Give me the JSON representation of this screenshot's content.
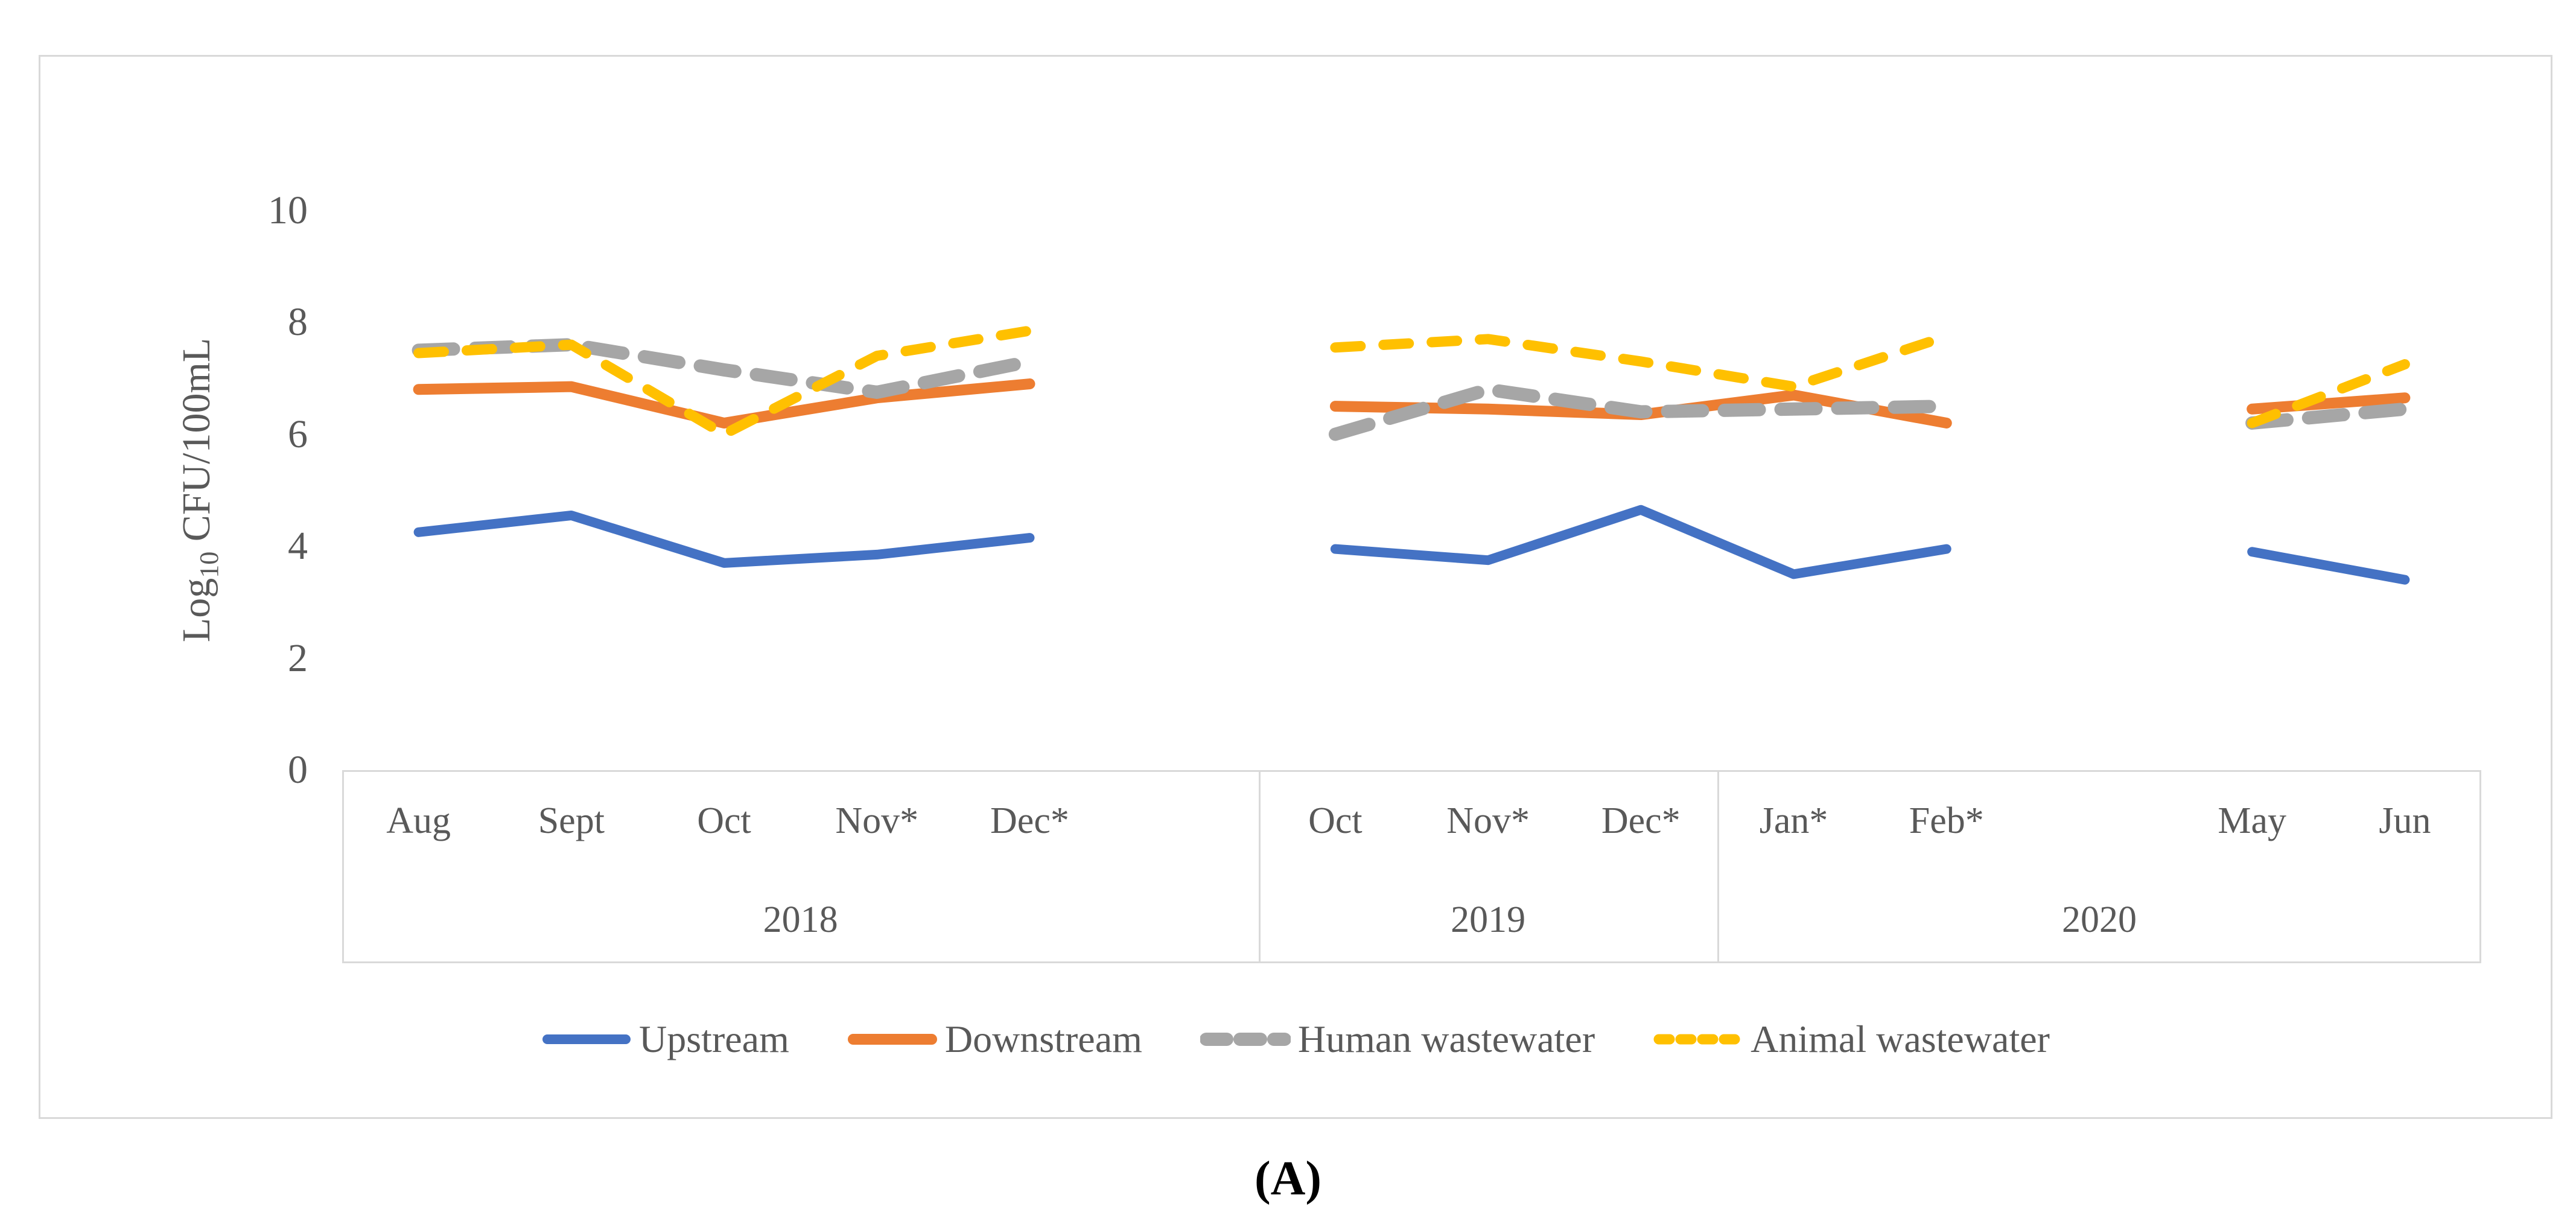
{
  "figure": {
    "caption": "(A)",
    "y_axis": {
      "label_prefix": "Log",
      "label_sub": "10",
      "label_suffix": " CFU/100mL"
    }
  },
  "colors": {
    "upstream": "#4472C4",
    "downstream": "#ED7D31",
    "human_wastewater": "#A6A6A6",
    "animal_wastewater": "#FFC000",
    "axis_text": "#595959",
    "frame_border": "#D9D9D9"
  },
  "chart_data": {
    "type": "line",
    "title": "",
    "xlabel": "",
    "ylabel": "Log10 CFU/100mL",
    "ylim": [
      0,
      10
    ],
    "yticks": [
      0,
      2,
      4,
      6,
      8,
      10
    ],
    "grid": false,
    "legend_position": "bottom",
    "slots": [
      "Aug",
      "Sept",
      "Oct",
      "Nov*",
      "Dec*",
      "",
      "Oct",
      "Nov*",
      "Dec*",
      "Jan*",
      "Feb*",
      "",
      "May",
      "Jun"
    ],
    "year_groups": [
      {
        "label": "2018",
        "start": 0,
        "end": 6
      },
      {
        "label": "2019",
        "start": 6,
        "end": 9
      },
      {
        "label": "2020",
        "start": 9,
        "end": 14
      }
    ],
    "series": [
      {
        "name": "Upstream",
        "color": "#4472C4",
        "style": "solid",
        "values": [
          4.25,
          4.55,
          3.7,
          3.85,
          4.15,
          null,
          3.95,
          3.75,
          4.65,
          3.5,
          3.95,
          null,
          3.9,
          3.4
        ]
      },
      {
        "name": "Downstream",
        "color": "#ED7D31",
        "style": "solid",
        "values": [
          6.8,
          6.85,
          6.2,
          6.65,
          6.9,
          null,
          6.5,
          6.45,
          6.35,
          6.7,
          6.2,
          null,
          6.45,
          6.65
        ]
      },
      {
        "name": "Human wastewater",
        "color": "#A6A6A6",
        "style": "long-dash",
        "values": [
          7.5,
          7.6,
          7.15,
          6.75,
          7.3,
          null,
          6.0,
          6.8,
          6.4,
          6.45,
          6.5,
          null,
          6.2,
          6.45
        ]
      },
      {
        "name": "Animal wastewater",
        "color": "#FFC000",
        "style": "short-dash",
        "values": [
          7.45,
          7.6,
          6.0,
          7.4,
          7.85,
          null,
          7.55,
          7.7,
          7.3,
          6.85,
          7.75,
          null,
          6.2,
          7.25
        ]
      }
    ]
  }
}
